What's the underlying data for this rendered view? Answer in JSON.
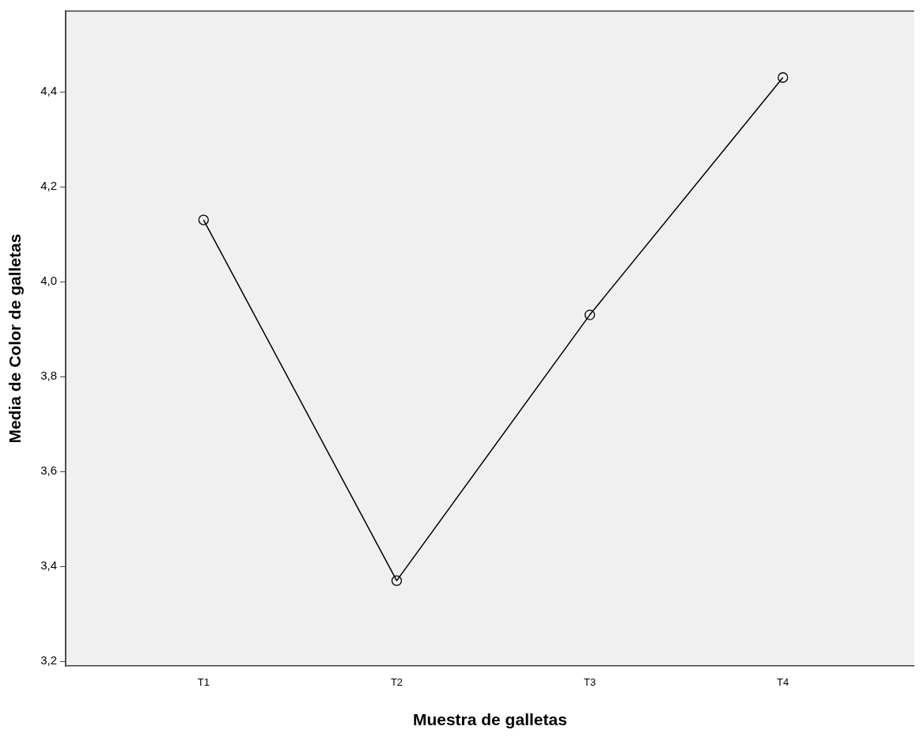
{
  "chart_data": {
    "type": "line",
    "xlabel": "Muestra de galletas",
    "ylabel": "Media de Color de galletas",
    "categories": [
      "T1",
      "T2",
      "T3",
      "T4"
    ],
    "series": [
      {
        "color": "#000000",
        "values": [
          4.13,
          3.37,
          3.93,
          4.43
        ]
      }
    ],
    "ylim": [
      3.19,
      4.57
    ],
    "yticks": [
      {
        "value": 3.2,
        "label": "3,2"
      },
      {
        "value": 3.4,
        "label": "3,4"
      },
      {
        "value": 3.6,
        "label": "3,6"
      },
      {
        "value": 3.8,
        "label": "3,8"
      },
      {
        "value": 4.0,
        "label": "4,0"
      },
      {
        "value": 4.2,
        "label": "4,2"
      },
      {
        "value": 4.4,
        "label": "4,4"
      }
    ],
    "grid": false,
    "legend": false,
    "marker": "circle",
    "line_style": "solid"
  }
}
